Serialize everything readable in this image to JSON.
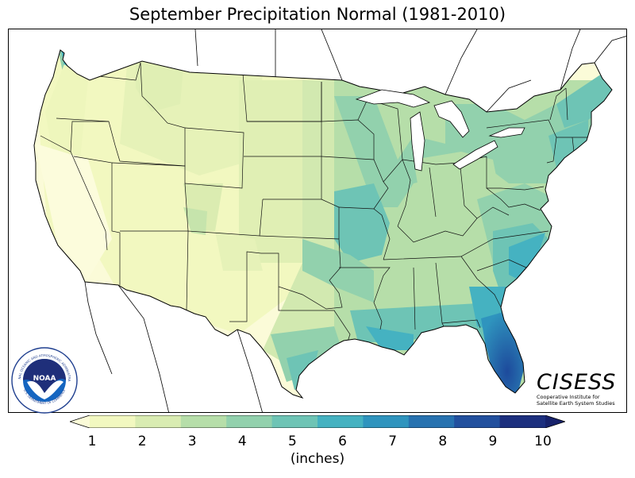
{
  "title": "September Precipitation Normal (1981-2010)",
  "colorbar": {
    "ticks": [
      "1",
      "2",
      "3",
      "4",
      "5",
      "6",
      "7",
      "8",
      "9",
      "10"
    ],
    "colors": [
      "#f2f8c0",
      "#d9ecb2",
      "#b6dea9",
      "#92d1ad",
      "#6ec4b5",
      "#45b2c1",
      "#2f94be",
      "#2772b0",
      "#22509e",
      "#1c2f7e"
    ],
    "under_color": "#fbfbd8",
    "over_color": "#17226b",
    "units_label": "(inches)"
  },
  "logos": {
    "noaa_text": "NOAA",
    "noaa_ring_text": "NATIONAL OCEANIC AND ATMOSPHERIC ADMINISTRATION",
    "noaa_ring_bottom_text": "U.S. DEPARTMENT OF COMMERCE",
    "cisess_name": "CISESS",
    "cisess_line1": "Cooperative Institute for",
    "cisess_line2": "Satellite Earth System Studies"
  }
}
